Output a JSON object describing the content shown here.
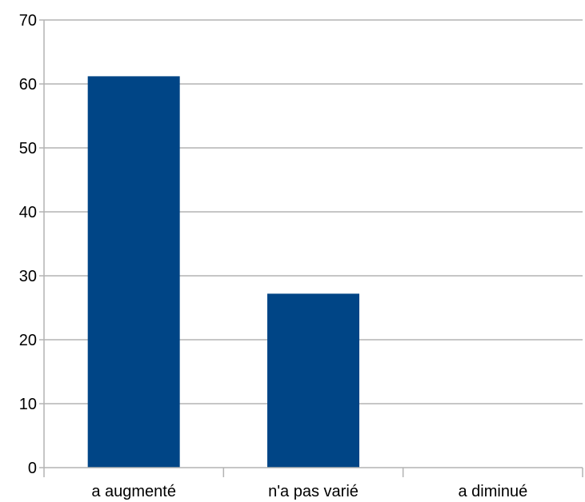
{
  "chart_data": {
    "type": "bar",
    "categories": [
      "a augmenté",
      "n'a pas varié",
      "a diminué"
    ],
    "values": [
      61.2,
      27.2,
      0
    ],
    "title": "",
    "xlabel": "",
    "ylabel": "",
    "ylim": [
      0,
      70
    ],
    "yticks": [
      "0",
      "10",
      "20",
      "30",
      "40",
      "50",
      "60",
      "70"
    ],
    "grid": true,
    "legend": "none",
    "colors": {
      "bar": "#004586",
      "grid": "#b3b3b3",
      "axis": "#b3b3b3",
      "text": "#000000"
    }
  }
}
